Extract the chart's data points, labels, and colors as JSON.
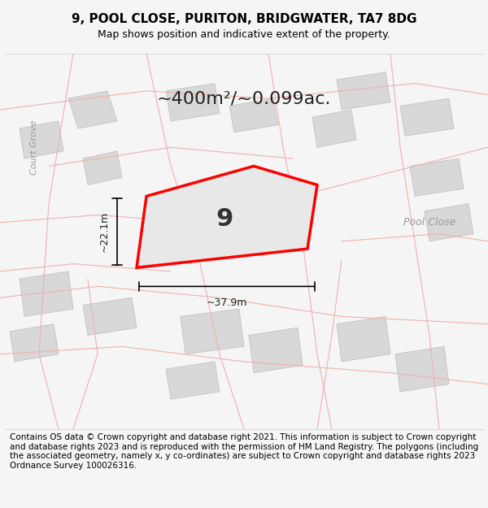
{
  "title": "9, POOL CLOSE, PURITON, BRIDGWATER, TA7 8DG",
  "subtitle": "Map shows position and indicative extent of the property.",
  "area_label": "~400m²/~0.099ac.",
  "plot_number": "9",
  "width_label": "~37.9m",
  "height_label": "~22.1m",
  "street_label": "Pool Close",
  "street_label2": "Court Grove",
  "footer": "Contains OS data © Crown copyright and database right 2021. This information is subject to Crown copyright and database rights 2023 and is reproduced with the permission of HM Land Registry. The polygons (including the associated geometry, namely x, y co-ordinates) are subject to Crown copyright and database rights 2023 Ordnance Survey 100026316.",
  "bg_color": "#f5f5f5",
  "map_bg": "#ffffff",
  "road_fill": "#e8e8e8",
  "building_fill": "#d8d8d8",
  "plot_outline_color": "#ff0000",
  "plot_fill_color": "#e8e8e8",
  "road_color_light": "#f0b0b0",
  "title_fontsize": 11,
  "subtitle_fontsize": 9,
  "area_fontsize": 16,
  "footer_fontsize": 7.5
}
